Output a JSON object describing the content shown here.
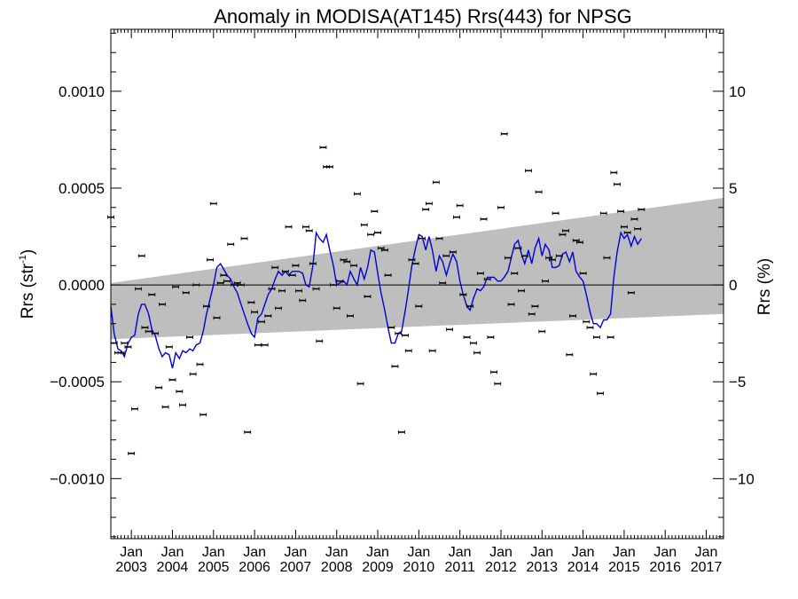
{
  "chart_data": {
    "type": "scatter",
    "title": "Anomaly in MODISA(AT145) Rrs(443) for NPSG",
    "ylabel_left": "Rrs (str",
    "ylabel_left_sup": "-1",
    "ylabel_left_close": ")",
    "ylabel_right": "Rrs (%)",
    "xlim": [
      2002.5,
      2017.42
    ],
    "ylim": [
      -0.00131,
      0.00132
    ],
    "ylim_right": [
      -13.1,
      13.2
    ],
    "grid": false,
    "zero_line": true,
    "colors": {
      "points": "#000000",
      "running_mean": "#0000dd",
      "band": "#bebebe",
      "axes": "#000000"
    },
    "x_ticks": [
      {
        "year": 2003,
        "top": "Jan",
        "bottom": "2003"
      },
      {
        "year": 2004,
        "top": "Jan",
        "bottom": "2004"
      },
      {
        "year": 2005,
        "top": "Jan",
        "bottom": "2005"
      },
      {
        "year": 2006,
        "top": "Jan",
        "bottom": "2006"
      },
      {
        "year": 2007,
        "top": "Jan",
        "bottom": "2007"
      },
      {
        "year": 2008,
        "top": "Jan",
        "bottom": "2008"
      },
      {
        "year": 2009,
        "top": "Jan",
        "bottom": "2009"
      },
      {
        "year": 2010,
        "top": "Jan",
        "bottom": "2010"
      },
      {
        "year": 2011,
        "top": "Jan",
        "bottom": "2011"
      },
      {
        "year": 2012,
        "top": "Jan",
        "bottom": "2012"
      },
      {
        "year": 2013,
        "top": "Jan",
        "bottom": "2013"
      },
      {
        "year": 2014,
        "top": "Jan",
        "bottom": "2014"
      },
      {
        "year": 2015,
        "top": "Jan",
        "bottom": "2015"
      },
      {
        "year": 2016,
        "top": "Jan",
        "bottom": "2016"
      },
      {
        "year": 2017,
        "top": "Jan",
        "bottom": "2017"
      }
    ],
    "y_ticks_left": [
      {
        "value": 0.001,
        "label": "0.0010"
      },
      {
        "value": 0.0005,
        "label": "0.0005"
      },
      {
        "value": 0.0,
        "label": "0.0000"
      },
      {
        "value": -0.0005,
        "label": "−0.0005"
      },
      {
        "value": -0.001,
        "label": "−0.0010"
      }
    ],
    "y_ticks_right": [
      {
        "value": 10,
        "label": "10"
      },
      {
        "value": 5,
        "label": "5"
      },
      {
        "value": 0,
        "label": "0"
      },
      {
        "value": -5,
        "label": "−5"
      },
      {
        "value": -10,
        "label": "−10"
      }
    ],
    "band": {
      "upper_start": [
        2002.5,
        1e-05
      ],
      "upper_end": [
        2017.42,
        0.00045
      ],
      "lower_start": [
        2002.5,
        -0.00028
      ],
      "lower_end": [
        2017.42,
        -0.00015
      ]
    },
    "points": [
      [
        2002.5,
        0.00035
      ],
      [
        2002.58,
        -0.0003
      ],
      [
        2002.67,
        -0.00035
      ],
      [
        2002.75,
        -0.00035
      ],
      [
        2002.83,
        -0.0003
      ],
      [
        2002.92,
        -0.00032
      ],
      [
        2003.0,
        -0.00087
      ],
      [
        2003.08,
        -0.00064
      ],
      [
        2003.17,
        -2e-05
      ],
      [
        2003.25,
        0.00015
      ],
      [
        2003.33,
        -0.00022
      ],
      [
        2003.42,
        -0.00024
      ],
      [
        2003.5,
        -5e-05
      ],
      [
        2003.58,
        -0.00025
      ],
      [
        2003.67,
        -0.00053
      ],
      [
        2003.75,
        -0.0001
      ],
      [
        2003.83,
        -0.00063
      ],
      [
        2003.92,
        -0.00032
      ],
      [
        2004.0,
        -0.00049
      ],
      [
        2004.08,
        -1e-05
      ],
      [
        2004.17,
        -0.00055
      ],
      [
        2004.25,
        -0.00062
      ],
      [
        2004.33,
        -4e-05
      ],
      [
        2004.42,
        -0.00027
      ],
      [
        2004.5,
        -0.00046
      ],
      [
        2004.58,
        0.0
      ],
      [
        2004.67,
        -0.00041
      ],
      [
        2004.75,
        -0.00067
      ],
      [
        2004.83,
        -0.00011
      ],
      [
        2004.92,
        0.00013
      ],
      [
        2005.0,
        0.00042
      ],
      [
        2005.08,
        -0.00017
      ],
      [
        2005.17,
        1e-05
      ],
      [
        2005.25,
        5e-05
      ],
      [
        2005.33,
        2e-05
      ],
      [
        2005.42,
        0.00021
      ],
      [
        2005.5,
        0.0
      ],
      [
        2005.58,
        1e-05
      ],
      [
        2005.67,
        0.0
      ],
      [
        2005.75,
        0.00024
      ],
      [
        2005.83,
        -0.00076
      ],
      [
        2005.92,
        -9e-05
      ],
      [
        2006.0,
        -0.00014
      ],
      [
        2006.08,
        -0.00031
      ],
      [
        2006.17,
        -0.00019
      ],
      [
        2006.25,
        -0.00031
      ],
      [
        2006.33,
        -0.00016
      ],
      [
        2006.42,
        -2e-05
      ],
      [
        2006.5,
        9e-05
      ],
      [
        2006.58,
        -0.00012
      ],
      [
        2006.67,
        -3e-05
      ],
      [
        2006.75,
        7e-05
      ],
      [
        2006.83,
        0.0003
      ],
      [
        2006.92,
        5e-05
      ],
      [
        2007.0,
        0.0001
      ],
      [
        2007.08,
        -3e-05
      ],
      [
        2007.17,
        -8e-05
      ],
      [
        2007.25,
        0.0003
      ],
      [
        2007.33,
        0.00028
      ],
      [
        2007.42,
        0.00011
      ],
      [
        2007.5,
        -2e-05
      ],
      [
        2007.58,
        -0.00029
      ],
      [
        2007.67,
        0.00071
      ],
      [
        2007.75,
        0.00061
      ],
      [
        2007.83,
        0.00061
      ],
      [
        2007.92,
        0.0
      ],
      [
        2008.0,
        -0.00012
      ],
      [
        2008.08,
        2e-05
      ],
      [
        2008.17,
        0.00013
      ],
      [
        2008.25,
        0.00012
      ],
      [
        2008.33,
        -0.00016
      ],
      [
        2008.42,
        0.0001
      ],
      [
        2008.5,
        0.00047
      ],
      [
        2008.58,
        -0.00051
      ],
      [
        2008.67,
        0.00031
      ],
      [
        2008.75,
        -6e-05
      ],
      [
        2008.83,
        0.00026
      ],
      [
        2008.92,
        0.00038
      ],
      [
        2009.0,
        0.00027
      ],
      [
        2009.08,
        0.00019
      ],
      [
        2009.17,
        0.00018
      ],
      [
        2009.25,
        5e-05
      ],
      [
        2009.33,
        -0.00022
      ],
      [
        2009.42,
        -0.00042
      ],
      [
        2009.5,
        -0.00025
      ],
      [
        2009.58,
        -0.00076
      ],
      [
        2009.67,
        -0.00026
      ],
      [
        2009.75,
        -0.00034
      ],
      [
        2009.83,
        0.00013
      ],
      [
        2009.92,
        0.00011
      ],
      [
        2010.0,
        -0.00011
      ],
      [
        2010.08,
        0.00024
      ],
      [
        2010.17,
        0.00039
      ],
      [
        2010.25,
        0.00042
      ],
      [
        2010.33,
        -0.00034
      ],
      [
        2010.42,
        0.00053
      ],
      [
        2010.5,
        0.00024
      ],
      [
        2010.58,
        1e-05
      ],
      [
        2010.67,
        0.00015
      ],
      [
        2010.75,
        -0.00023
      ],
      [
        2010.83,
        0.00017
      ],
      [
        2010.92,
        0.00035
      ],
      [
        2011.0,
        0.00041
      ],
      [
        2011.08,
        -5e-05
      ],
      [
        2011.17,
        -0.00027
      ],
      [
        2011.25,
        -0.00011
      ],
      [
        2011.33,
        -0.0003
      ],
      [
        2011.42,
        -0.00035
      ],
      [
        2011.5,
        6e-05
      ],
      [
        2011.58,
        0.00034
      ],
      [
        2011.67,
        3e-05
      ],
      [
        2011.75,
        -0.00027
      ],
      [
        2011.83,
        -0.00045
      ],
      [
        2011.92,
        -0.00051
      ],
      [
        2012.0,
        0.0004
      ],
      [
        2012.08,
        0.00078
      ],
      [
        2012.17,
        0.00014
      ],
      [
        2012.25,
        -0.0001
      ],
      [
        2012.33,
        6e-05
      ],
      [
        2012.42,
        0.00019
      ],
      [
        2012.5,
        -3e-05
      ],
      [
        2012.58,
        0.00015
      ],
      [
        2012.67,
        0.00059
      ],
      [
        2012.75,
        -0.00015
      ],
      [
        2012.83,
        -0.00011
      ],
      [
        2012.92,
        0.00048
      ],
      [
        2013.0,
        -0.00024
      ],
      [
        2013.08,
        2e-05
      ],
      [
        2013.17,
        0.00014
      ],
      [
        2013.25,
        0.00013
      ],
      [
        2013.33,
        0.00037
      ],
      [
        2013.42,
        0.00015
      ],
      [
        2013.5,
        0.00026
      ],
      [
        2013.58,
        0.00028
      ],
      [
        2013.67,
        -0.00036
      ],
      [
        2013.75,
        -0.00016
      ],
      [
        2013.83,
        0.00023
      ],
      [
        2013.92,
        0.00022
      ],
      [
        2014.0,
        6e-05
      ],
      [
        2014.08,
        -0.00019
      ],
      [
        2014.17,
        -0.00022
      ],
      [
        2014.25,
        -0.00046
      ],
      [
        2014.33,
        -0.00027
      ],
      [
        2014.42,
        -0.00056
      ],
      [
        2014.5,
        0.00037
      ],
      [
        2014.58,
        0.00014
      ],
      [
        2014.67,
        -0.00027
      ],
      [
        2014.75,
        0.00058
      ],
      [
        2014.83,
        0.00052
      ],
      [
        2014.92,
        0.00038
      ],
      [
        2015.0,
        0.0003
      ],
      [
        2015.08,
        0.00027
      ],
      [
        2015.17,
        -4e-05
      ],
      [
        2015.25,
        0.00034
      ],
      [
        2015.33,
        0.00029
      ],
      [
        2015.42,
        0.00039
      ]
    ],
    "running_mean": [
      [
        2002.5,
        -0.00011
      ],
      [
        2002.58,
        -0.00025
      ],
      [
        2002.67,
        -0.00033
      ],
      [
        2002.75,
        -0.00034
      ],
      [
        2002.83,
        -0.00037
      ],
      [
        2002.92,
        -0.0003
      ],
      [
        2003.0,
        -0.00027
      ],
      [
        2003.08,
        -0.00026
      ],
      [
        2003.17,
        -0.00015
      ],
      [
        2003.25,
        -0.0001
      ],
      [
        2003.33,
        -0.0001
      ],
      [
        2003.42,
        -0.00015
      ],
      [
        2003.5,
        -0.00023
      ],
      [
        2003.58,
        -0.00026
      ],
      [
        2003.67,
        -0.00033
      ],
      [
        2003.75,
        -0.00037
      ],
      [
        2003.83,
        -0.00035
      ],
      [
        2003.92,
        -0.00036
      ],
      [
        2004.0,
        -0.00043
      ],
      [
        2004.08,
        -0.00035
      ],
      [
        2004.17,
        -0.00038
      ],
      [
        2004.25,
        -0.00034
      ],
      [
        2004.33,
        -0.00035
      ],
      [
        2004.42,
        -0.00033
      ],
      [
        2004.5,
        -0.00034
      ],
      [
        2004.58,
        -0.00031
      ],
      [
        2004.67,
        -0.0003
      ],
      [
        2004.75,
        -0.00024
      ],
      [
        2004.83,
        -0.00015
      ],
      [
        2004.92,
        -7e-05
      ],
      [
        2005.0,
        0.0
      ],
      [
        2005.08,
        9e-05
      ],
      [
        2005.17,
        0.00011
      ],
      [
        2005.25,
        8e-05
      ],
      [
        2005.33,
        5e-05
      ],
      [
        2005.42,
        3e-05
      ],
      [
        2005.5,
        -1e-05
      ],
      [
        2005.58,
        -4e-05
      ],
      [
        2005.67,
        -0.0001
      ],
      [
        2005.75,
        -0.00015
      ],
      [
        2005.83,
        -0.0002
      ],
      [
        2005.92,
        -0.00025
      ],
      [
        2006.0,
        -0.00027
      ],
      [
        2006.08,
        -0.00017
      ],
      [
        2006.17,
        -0.00015
      ],
      [
        2006.25,
        -0.0001
      ],
      [
        2006.33,
        -5e-05
      ],
      [
        2006.42,
        -2e-05
      ],
      [
        2006.5,
        3e-05
      ],
      [
        2006.58,
        7e-05
      ],
      [
        2006.67,
        5e-05
      ],
      [
        2006.75,
        7e-05
      ],
      [
        2006.83,
        5e-05
      ],
      [
        2006.92,
        7e-05
      ],
      [
        2007.0,
        7e-05
      ],
      [
        2007.08,
        7e-05
      ],
      [
        2007.17,
        6e-05
      ],
      [
        2007.25,
        0.0
      ],
      [
        2007.33,
        -1e-05
      ],
      [
        2007.42,
        0.0001
      ],
      [
        2007.5,
        0.00027
      ],
      [
        2007.58,
        0.00024
      ],
      [
        2007.67,
        0.00022
      ],
      [
        2007.75,
        0.00026
      ],
      [
        2007.83,
        0.00018
      ],
      [
        2007.92,
        0.0001
      ],
      [
        2008.0,
        0.0
      ],
      [
        2008.08,
        1e-05
      ],
      [
        2008.17,
        2e-05
      ],
      [
        2008.25,
        0.0
      ],
      [
        2008.33,
        7e-05
      ],
      [
        2008.42,
        3e-05
      ],
      [
        2008.5,
        0.0
      ],
      [
        2008.58,
        9e-05
      ],
      [
        2008.67,
        3e-05
      ],
      [
        2008.75,
        9e-05
      ],
      [
        2008.83,
        0.00018
      ],
      [
        2008.92,
        0.00017
      ],
      [
        2009.0,
        6e-05
      ],
      [
        2009.08,
        -4e-05
      ],
      [
        2009.17,
        -0.00013
      ],
      [
        2009.25,
        -0.00022
      ],
      [
        2009.33,
        -0.0003
      ],
      [
        2009.42,
        -0.0003
      ],
      [
        2009.5,
        -0.00025
      ],
      [
        2009.58,
        -0.00024
      ],
      [
        2009.67,
        -0.00013
      ],
      [
        2009.75,
        -2e-05
      ],
      [
        2009.83,
        0.0001
      ],
      [
        2009.92,
        0.00019
      ],
      [
        2010.0,
        0.00026
      ],
      [
        2010.08,
        0.00025
      ],
      [
        2010.17,
        0.00018
      ],
      [
        2010.25,
        0.00025
      ],
      [
        2010.33,
        0.00018
      ],
      [
        2010.42,
        7e-05
      ],
      [
        2010.5,
        0.00015
      ],
      [
        2010.58,
        0.00012
      ],
      [
        2010.67,
        5e-05
      ],
      [
        2010.75,
        0.00011
      ],
      [
        2010.83,
        0.00016
      ],
      [
        2010.92,
        0.00012
      ],
      [
        2011.0,
        2e-05
      ],
      [
        2011.08,
        -5e-05
      ],
      [
        2011.17,
        -0.00011
      ],
      [
        2011.25,
        -0.00013
      ],
      [
        2011.33,
        -7e-05
      ],
      [
        2011.42,
        -2e-05
      ],
      [
        2011.5,
        -3e-05
      ],
      [
        2011.58,
        -1e-05
      ],
      [
        2011.67,
        4e-05
      ],
      [
        2011.75,
        4e-05
      ],
      [
        2011.83,
        4e-05
      ],
      [
        2011.92,
        2e-05
      ],
      [
        2012.0,
        2e-05
      ],
      [
        2012.08,
        4e-05
      ],
      [
        2012.17,
        7e-05
      ],
      [
        2012.25,
        0.00014
      ],
      [
        2012.33,
        0.00021
      ],
      [
        2012.42,
        0.00023
      ],
      [
        2012.5,
        0.00016
      ],
      [
        2012.58,
        0.00011
      ],
      [
        2012.67,
        0.00018
      ],
      [
        2012.75,
        0.00011
      ],
      [
        2012.83,
        0.00019
      ],
      [
        2012.92,
        0.00024
      ],
      [
        2013.0,
        0.00015
      ],
      [
        2013.08,
        0.00021
      ],
      [
        2013.17,
        0.00018
      ],
      [
        2013.25,
        9e-05
      ],
      [
        2013.33,
        9e-05
      ],
      [
        2013.42,
        0.0001
      ],
      [
        2013.5,
        0.00016
      ],
      [
        2013.58,
        0.00017
      ],
      [
        2013.67,
        0.00012
      ],
      [
        2013.75,
        0.00017
      ],
      [
        2013.83,
        7e-05
      ],
      [
        2013.92,
        4e-05
      ],
      [
        2014.0,
        2e-05
      ],
      [
        2014.08,
        -5e-05
      ],
      [
        2014.17,
        -0.00014
      ],
      [
        2014.25,
        -0.0002
      ],
      [
        2014.33,
        -0.0002
      ],
      [
        2014.42,
        -0.00022
      ],
      [
        2014.5,
        -0.00018
      ],
      [
        2014.58,
        -0.00018
      ],
      [
        2014.67,
        -0.00015
      ],
      [
        2014.75,
        4e-05
      ],
      [
        2014.83,
        0.00017
      ],
      [
        2014.92,
        0.00027
      ],
      [
        2015.0,
        0.00024
      ],
      [
        2015.08,
        0.00026
      ],
      [
        2015.17,
        0.0002
      ],
      [
        2015.25,
        0.00025
      ],
      [
        2015.33,
        0.00021
      ],
      [
        2015.42,
        0.00024
      ]
    ]
  }
}
